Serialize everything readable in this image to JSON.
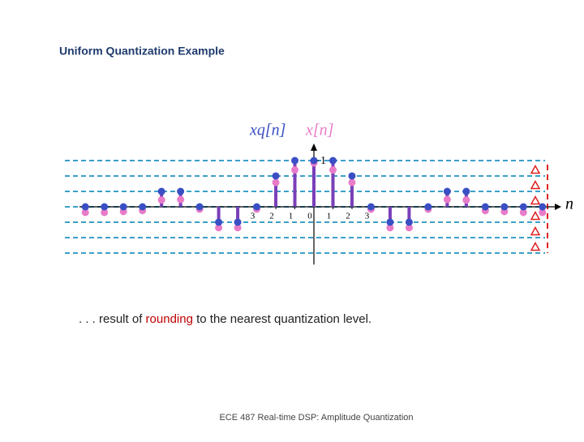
{
  "title": "Uniform Quantization Example",
  "caption": {
    "before": ". . . result of",
    "highlight": "rounding",
    "after": "to the nearest quantization level."
  },
  "footer": "ECE 487 Real-time DSP: Amplitude Quantization",
  "chart_data": {
    "type": "stem",
    "x_label": "n",
    "x": [
      -12,
      -11,
      -10,
      -9,
      -8,
      -7,
      -6,
      -5,
      -4,
      -3,
      -2,
      -1,
      0,
      1,
      2,
      3,
      4,
      5,
      6,
      7,
      8,
      9,
      10,
      11,
      12
    ],
    "series": [
      {
        "name": "xq[n]",
        "color": "#3a4fc4",
        "values": [
          0,
          0,
          0,
          0,
          0.333,
          0.333,
          0,
          -0.333,
          -0.333,
          0,
          0.667,
          1,
          1,
          1,
          0.667,
          0,
          -0.333,
          -0.333,
          0,
          0.333,
          0.333,
          0,
          0,
          0,
          0
        ]
      },
      {
        "name": "x[n]",
        "color": "#e87cc8",
        "values": [
          -0.07,
          -0.07,
          -0.05,
          -0.03,
          0.2,
          0.21,
          0,
          -0.4,
          -0.4,
          0,
          0.58,
          0.85,
          1,
          0.85,
          0.58,
          0,
          -0.4,
          -0.4,
          0,
          0.21,
          0.2,
          -0.03,
          -0.05,
          -0.07,
          -0.07
        ]
      }
    ],
    "stem_color": "#7a3fb8",
    "xlim": [
      -13.5,
      13.5
    ],
    "ylim": [
      -1.25,
      1.3
    ],
    "xticks": [
      {
        "value": -3,
        "label": "3"
      },
      {
        "value": -2,
        "label": "2"
      },
      {
        "value": -1,
        "label": "1"
      },
      0,
      1,
      2,
      3
    ],
    "yticks": [
      1
    ],
    "levels": [
      1,
      0.667,
      0.333,
      0,
      -0.333,
      -0.667,
      -1
    ]
  }
}
